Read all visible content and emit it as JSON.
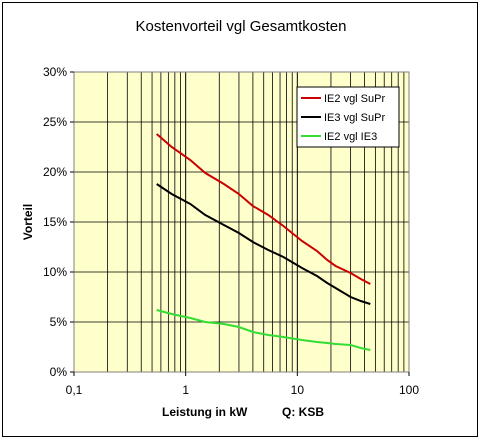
{
  "chart_data": {
    "type": "line",
    "title": "Kostenvorteil vgl Gesamtkosten",
    "xlabel": "Leistung in kW",
    "xlabel_note": "Q: KSB",
    "ylabel": "Vorteil",
    "x_scale": "log",
    "xlim": [
      0.1,
      100
    ],
    "ylim": [
      0,
      0.3
    ],
    "x_ticks": [
      0.1,
      1,
      10,
      100
    ],
    "x_tick_labels": [
      "0,1",
      "1",
      "10",
      "100"
    ],
    "y_ticks": [
      0,
      0.05,
      0.1,
      0.15,
      0.2,
      0.25,
      0.3
    ],
    "y_tick_labels": [
      "0%",
      "5%",
      "10%",
      "15%",
      "20%",
      "25%",
      "30%"
    ],
    "grid": true,
    "plot_background": "#ffffcc",
    "legend_position": "top-right",
    "series": [
      {
        "name": "IE2 vgl SuPr",
        "color": "#cc0000",
        "x": [
          0.55,
          0.75,
          1.1,
          1.5,
          2.2,
          3.0,
          4.0,
          5.5,
          7.5,
          11,
          15,
          18.5,
          22,
          30,
          37,
          45
        ],
        "y": [
          0.238,
          0.225,
          0.212,
          0.199,
          0.188,
          0.178,
          0.166,
          0.157,
          0.146,
          0.131,
          0.121,
          0.112,
          0.106,
          0.099,
          0.093,
          0.088
        ]
      },
      {
        "name": "IE3 vgl SuPr",
        "color": "#000000",
        "x": [
          0.55,
          0.75,
          1.1,
          1.5,
          2.2,
          3.0,
          4.0,
          5.5,
          7.5,
          11,
          15,
          18.5,
          22,
          30,
          37,
          45
        ],
        "y": [
          0.188,
          0.178,
          0.168,
          0.157,
          0.147,
          0.139,
          0.13,
          0.122,
          0.115,
          0.104,
          0.096,
          0.089,
          0.084,
          0.075,
          0.071,
          0.068
        ]
      },
      {
        "name": "IE2 vgl IE3",
        "color": "#33dd33",
        "x": [
          0.55,
          0.75,
          1.1,
          1.5,
          2.2,
          3.0,
          4.0,
          5.5,
          7.5,
          11,
          15,
          18.5,
          22,
          30,
          37,
          45
        ],
        "y": [
          0.062,
          0.058,
          0.054,
          0.05,
          0.048,
          0.045,
          0.04,
          0.037,
          0.035,
          0.032,
          0.03,
          0.029,
          0.028,
          0.027,
          0.024,
          0.022
        ]
      }
    ]
  }
}
